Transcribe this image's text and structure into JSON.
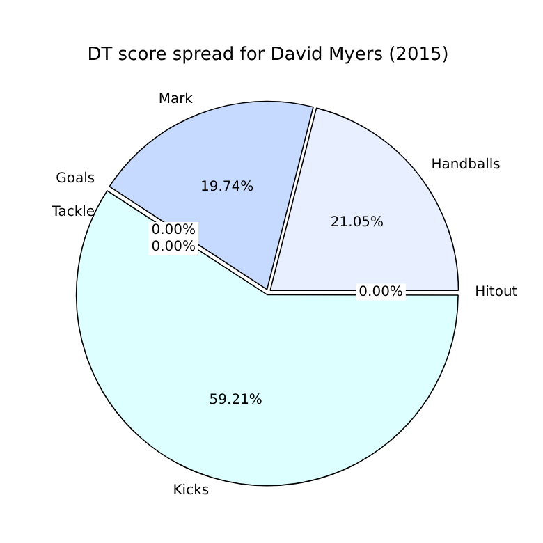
{
  "chart_data": {
    "type": "pie",
    "title": "DT score spread for David Myers (2015)",
    "categories": [
      "Hitout",
      "Kicks",
      "Goals",
      "Tackle",
      "Mark",
      "Handballs"
    ],
    "values": [
      0,
      59.21,
      0,
      0,
      19.74,
      21.05
    ],
    "colors": [
      "#ffffff",
      "#ddffff",
      "#999999",
      "#999999",
      "#c6d9ff",
      "#e8f0ff"
    ],
    "value_labels": [
      "0.00%",
      "59.21%",
      "0.00%",
      "0.00%",
      "19.74%",
      "21.05%"
    ],
    "legend": false
  }
}
